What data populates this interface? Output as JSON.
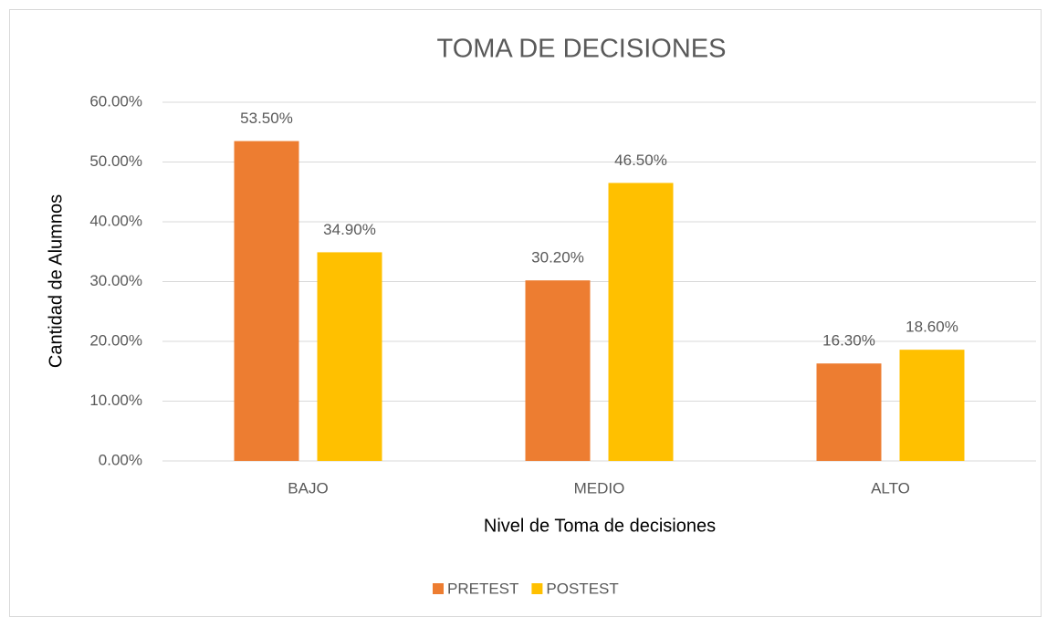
{
  "chart_data": {
    "type": "bar",
    "title": "TOMA DE DECISIONES",
    "x_label": "Nivel de Toma de decisiones",
    "y_label": "Cantidad de Alumnos",
    "categories": [
      "BAJO",
      "MEDIO",
      "ALTO"
    ],
    "series": [
      {
        "name": "PRETEST",
        "color": "#ed7d31",
        "values": [
          53.5,
          30.2,
          16.3
        ],
        "value_labels": [
          "53.50%",
          "30.20%",
          "16.30%"
        ]
      },
      {
        "name": "POSTEST",
        "color": "#ffc000",
        "values": [
          34.9,
          46.5,
          18.6
        ],
        "value_labels": [
          "34.90%",
          "46.50%",
          "18.60%"
        ]
      }
    ],
    "ylim": [
      0,
      60
    ],
    "yticks": [
      {
        "value": 0,
        "label": "0.00%"
      },
      {
        "value": 10,
        "label": "10.00%"
      },
      {
        "value": 20,
        "label": "20.00%"
      },
      {
        "value": 30,
        "label": "30.00%"
      },
      {
        "value": 40,
        "label": "40.00%"
      },
      {
        "value": 50,
        "label": "50.00%"
      },
      {
        "value": 60,
        "label": "60.00%"
      }
    ],
    "grid": true,
    "legend": "bottom"
  }
}
